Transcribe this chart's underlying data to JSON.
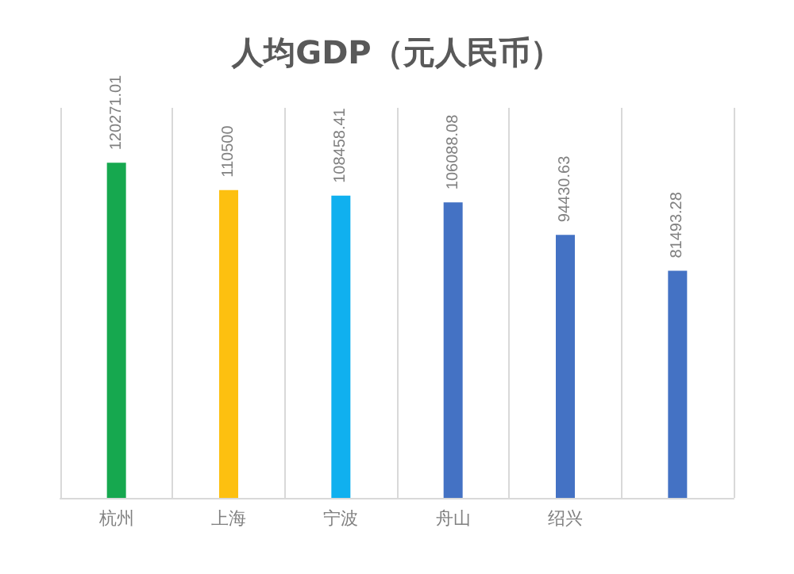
{
  "chart_data": {
    "type": "bar",
    "title": "人均GDP（元人民币）",
    "categories": [
      "杭州",
      "上海",
      "宁波",
      "舟山",
      "绍兴",
      null
    ],
    "values": [
      120271.01,
      110500,
      108458.41,
      106088.08,
      94430.63,
      81493.28
    ],
    "colors": [
      "#16a84f",
      "#fdc010",
      "#10b0ef",
      "#4472c4",
      "#4472c4",
      "#4472c4"
    ],
    "data_labels": true,
    "grid": "x"
  }
}
